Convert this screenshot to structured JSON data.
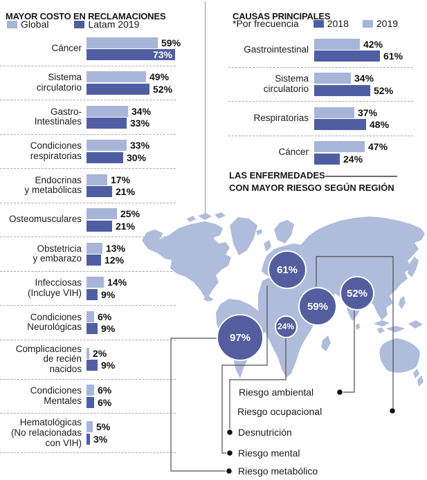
{
  "left_chart": {
    "title": "MAYOR COSTO EN RECLAMACIONES",
    "legend": [
      {
        "label": "Global",
        "tone": "light"
      },
      {
        "label": "Latam 2019",
        "tone": "dark"
      }
    ]
  },
  "right_chart": {
    "title": "CAUSAS PRINCIPALES",
    "footnote": "*Por frecuencia",
    "legend": [
      {
        "label": "2018",
        "tone": "dark"
      },
      {
        "label": "2019",
        "tone": "light"
      }
    ]
  },
  "map_section": {
    "title_line1": "LAS ENFERMEDADES",
    "title_line2": "CON MAYOR RIESGO SEGÚN REGIÓN"
  },
  "colors": {
    "bar_light": "#a7b5d8",
    "bar_dark": "#4f5ea3",
    "bubble_fill": "#545d9e",
    "map_fill": "#afbcdc",
    "dash": "#a8a8a8",
    "connector": "#4d4d4d"
  },
  "chart_data": [
    {
      "type": "bar",
      "orientation": "horizontal",
      "title": "MAYOR COSTO EN RECLAMACIONES",
      "unit": "%",
      "series": [
        "Global",
        "Latam 2019"
      ],
      "tones": [
        "light",
        "dark"
      ],
      "xlim": [
        0,
        100
      ],
      "grid": false,
      "groups": [
        {
          "label": "Cáncer",
          "values": [
            59,
            73
          ],
          "inside": [
            false,
            true
          ]
        },
        {
          "label": "Sistema\ncirculatorio",
          "values": [
            49,
            52
          ]
        },
        {
          "label": "Gastro-\nIntestinales",
          "values": [
            34,
            33
          ]
        },
        {
          "label": "Condiciones\nrespiratorias",
          "values": [
            33,
            30
          ]
        },
        {
          "label": "Endocrinas\ny metabólicas",
          "values": [
            17,
            21
          ]
        },
        {
          "label": "Osteomusculares",
          "values": [
            25,
            21
          ]
        },
        {
          "label": "Obstetricia\ny embarazo",
          "values": [
            13,
            12
          ]
        },
        {
          "label": "Infecciosas\n(Incluye VIH)",
          "values": [
            14,
            9
          ]
        },
        {
          "label": "Condiciones\nNeurológicas",
          "values": [
            6,
            9
          ]
        },
        {
          "label": "Complicaciones\nde recién\nnacidos",
          "values": [
            2,
            9
          ]
        },
        {
          "label": "Condiciones\nMentales",
          "values": [
            6,
            6
          ]
        },
        {
          "label": "Hematológicas\n(No relacionadas\ncon VIH)",
          "values": [
            5,
            3
          ]
        }
      ]
    },
    {
      "type": "bar",
      "orientation": "horizontal",
      "title": "CAUSAS PRINCIPALES (*Por frecuencia)",
      "unit": "%",
      "series": [
        "2019",
        "2018"
      ],
      "tones": [
        "light",
        "dark"
      ],
      "xlim": [
        0,
        100
      ],
      "grid": false,
      "groups": [
        {
          "label": "Gastrointestinal",
          "values": [
            42,
            61
          ]
        },
        {
          "label": "Sistema\ncirculatorio",
          "values": [
            34,
            52
          ]
        },
        {
          "label": "Respiratorias",
          "values": [
            37,
            48
          ]
        },
        {
          "label": "Cáncer",
          "values": [
            47,
            24
          ]
        }
      ]
    },
    {
      "type": "bubble-map",
      "title": "LAS ENFERMEDADES CON MAYOR RIESGO SEGÚN REGIÓN",
      "points": [
        {
          "value": "97%",
          "risk": "Riesgo metabólico"
        },
        {
          "value": "61%",
          "risk": "Riesgo mental"
        },
        {
          "value": "59%",
          "risk": "Riesgo ocupacional"
        },
        {
          "value": "52%",
          "risk": "Riesgo ambiental"
        },
        {
          "value": "24%",
          "risk": "Desnutrición"
        }
      ],
      "labels_order": [
        "Riesgo ambiental",
        "Riesgo ocupacional",
        "Desnutrición",
        "Riesgo mental",
        "Riesgo metabólico"
      ]
    }
  ]
}
